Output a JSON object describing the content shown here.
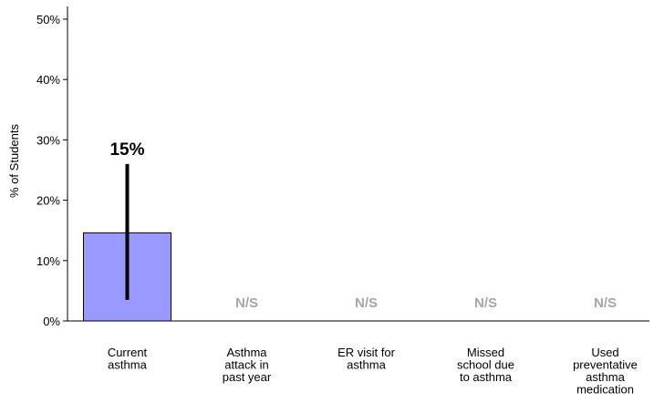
{
  "chart_data": {
    "type": "bar",
    "ylabel": "% of Students",
    "ylim": [
      0,
      50
    ],
    "yticks": [
      0,
      10,
      20,
      30,
      40,
      50
    ],
    "ytick_labels": [
      "0%",
      "10%",
      "20%",
      "30%",
      "40%",
      "50%"
    ],
    "categories": [
      [
        "Current",
        "asthma"
      ],
      [
        "Asthma",
        "attack in",
        "past year"
      ],
      [
        "ER visit for",
        "asthma"
      ],
      [
        "Missed",
        "school due",
        "to asthma"
      ],
      [
        "Used",
        "preventative",
        "asthma",
        "medication"
      ]
    ],
    "values": [
      14.6,
      null,
      null,
      null,
      null
    ],
    "error_bars": [
      [
        3.5,
        26
      ],
      null,
      null,
      null,
      null
    ],
    "data_labels": [
      "15%",
      "N/S",
      "N/S",
      "N/S",
      "N/S"
    ],
    "grid": false,
    "legend": "none"
  },
  "colors": {
    "bar_fill": "#9999ff",
    "bar_stroke": "#000000",
    "error_bar": "#000000",
    "ns_text": "#a6a6a6",
    "axis": "#000000"
  }
}
